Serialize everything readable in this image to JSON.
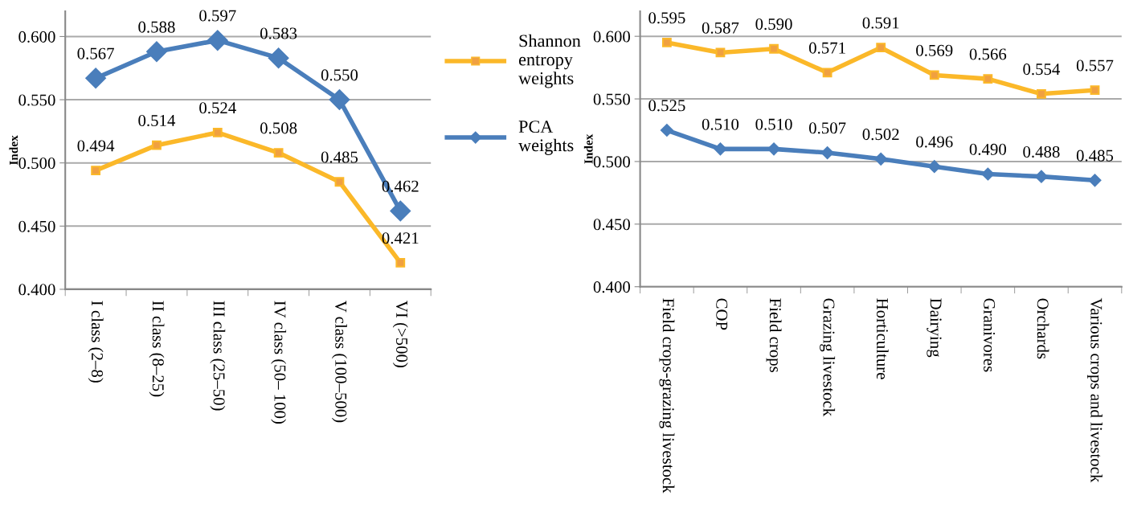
{
  "chart_data": [
    {
      "type": "line",
      "ylabel": "Index",
      "categories": [
        "I class (2–8)",
        "II class (8–25)",
        "III class (25–50)",
        "IV class (50– 100)",
        "V class (100–500)",
        "VI (>500)"
      ],
      "series": [
        {
          "name": "Shannon entropy weights",
          "color": "#fbb829",
          "marker": "square",
          "values": [
            0.494,
            0.514,
            0.524,
            0.508,
            0.485,
            0.421
          ],
          "value_labels": [
            "0.494",
            "0.514",
            "0.524",
            "0.508",
            "0.485",
            "0.421"
          ]
        },
        {
          "name": "PCA weights",
          "color": "#4a7ebb",
          "marker": "diamond",
          "values": [
            0.567,
            0.588,
            0.597,
            0.583,
            0.55,
            0.462
          ],
          "value_labels": [
            "0.567",
            "0.588",
            "0.597",
            "0.583",
            "0.550",
            "0.462"
          ]
        }
      ],
      "ylim": [
        0.4,
        0.62
      ],
      "yticks": [
        {
          "value": 0.4,
          "label": "0.400"
        },
        {
          "value": 0.45,
          "label": "0.450"
        },
        {
          "value": 0.5,
          "label": "0.500"
        },
        {
          "value": 0.55,
          "label": "0.550"
        },
        {
          "value": 0.6,
          "label": "0.600"
        }
      ],
      "grid": "y",
      "legend": "right",
      "line_style": "solid"
    },
    {
      "type": "line",
      "ylabel": "Index",
      "categories": [
        "Field crops-grazing livestock",
        "COP",
        "Field crops",
        "Grazing livestock",
        "Horticulture",
        "Dairying",
        "Granivores",
        "Orchards",
        "Various crops and livestock"
      ],
      "series": [
        {
          "color": "#fbb829",
          "marker": "square",
          "values": [
            0.595,
            0.587,
            0.59,
            0.571,
            0.591,
            0.569,
            0.566,
            0.554,
            0.557
          ],
          "value_labels": [
            "0.595",
            "0.587",
            "0.590",
            "0.571",
            "0.591",
            "0.569",
            "0.566",
            "0.554",
            "0.557"
          ]
        },
        {
          "color": "#4a7ebb",
          "marker": "diamond",
          "values": [
            0.525,
            0.51,
            0.51,
            0.507,
            0.502,
            0.496,
            0.49,
            0.488,
            0.485
          ],
          "value_labels": [
            "0.525",
            "0.510",
            "0.510",
            "0.507",
            "0.502",
            "0.496",
            "0.490",
            "0.488",
            "0.485"
          ]
        }
      ],
      "ylim": [
        0.4,
        0.62
      ],
      "yticks": [
        {
          "value": 0.4,
          "label": "0.400"
        },
        {
          "value": 0.45,
          "label": "0.450"
        },
        {
          "value": 0.5,
          "label": "0.500"
        },
        {
          "value": 0.55,
          "label": "0.550"
        },
        {
          "value": 0.6,
          "label": "0.600"
        }
      ],
      "grid": "y",
      "line_style": "solid"
    }
  ]
}
